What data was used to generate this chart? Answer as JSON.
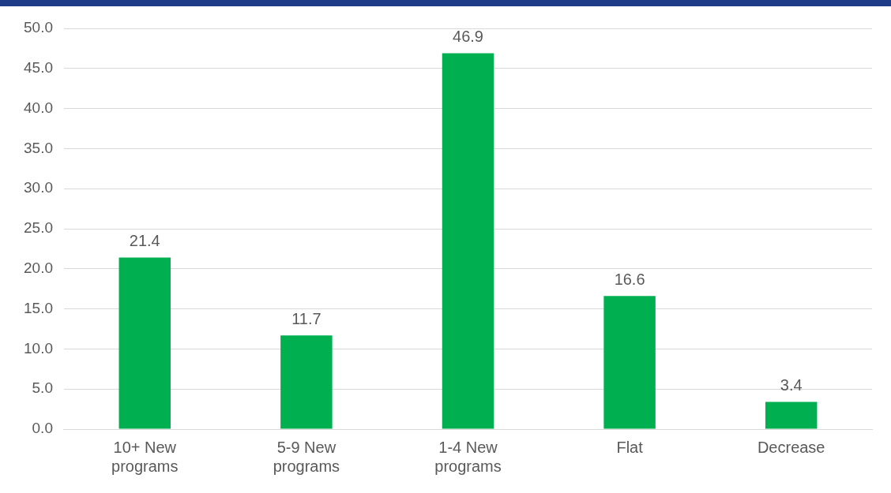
{
  "chart_data": {
    "type": "bar",
    "categories": [
      "10+ New programs",
      "5-9 New programs",
      "1-4 New programs",
      "Flat",
      "Decrease"
    ],
    "values": [
      21.4,
      11.7,
      46.9,
      16.6,
      3.4
    ],
    "color": "#00b050",
    "ylim": [
      0,
      50
    ],
    "yticks": [
      {
        "value": 0,
        "label": "0.0"
      },
      {
        "value": 5,
        "label": "5.0"
      },
      {
        "value": 10,
        "label": "10.0"
      },
      {
        "value": 15,
        "label": "15.0"
      },
      {
        "value": 20,
        "label": "20.0"
      },
      {
        "value": 25,
        "label": "25.0"
      },
      {
        "value": 30,
        "label": "30.0"
      },
      {
        "value": 35,
        "label": "35.0"
      },
      {
        "value": 40,
        "label": "40.0"
      },
      {
        "value": 45,
        "label": "45.0"
      },
      {
        "value": 50,
        "label": "50.0"
      }
    ],
    "grid": "y",
    "data_labels": true,
    "legend": false
  }
}
